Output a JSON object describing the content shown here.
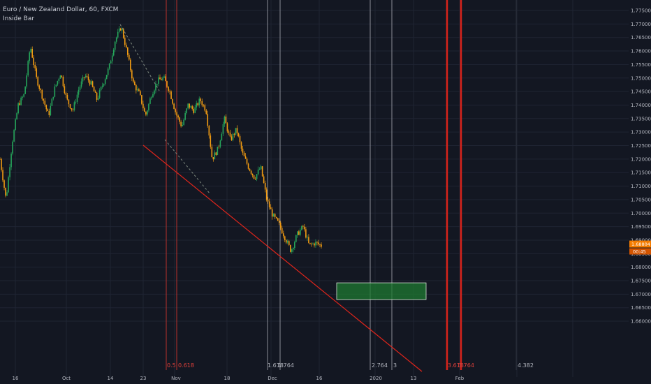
{
  "legend": {
    "symbol": "Euro / New Zealand Dollar, 60, FXCM",
    "indicator": "Inside Bar"
  },
  "chart_data": {
    "type": "candlestick",
    "y_ticks": [
      "1.77500",
      "1.77000",
      "1.76500",
      "1.76000",
      "1.75500",
      "1.75000",
      "1.74500",
      "1.74000",
      "1.73500",
      "1.73000",
      "1.72500",
      "1.72000",
      "1.71500",
      "1.71000",
      "1.70500",
      "1.70000",
      "1.69500",
      "1.69000",
      "1.68500",
      "1.68000",
      "1.67500",
      "1.67000",
      "1.66500",
      "1.66000"
    ],
    "y_range": [
      1.659,
      1.778
    ],
    "x_ticks": [
      "16",
      "Oct",
      "14",
      "23",
      "Nov",
      "18",
      "Dec",
      "16",
      "2020",
      "13",
      "Feb"
    ],
    "last_price": "1.68804",
    "countdown": "00:45",
    "price_path": [
      {
        "t": 0,
        "p": 1.72
      },
      {
        "t": 1,
        "p": 1.705
      },
      {
        "t": 2,
        "p": 1.726
      },
      {
        "t": 3,
        "p": 1.74
      },
      {
        "t": 4,
        "p": 1.744
      },
      {
        "t": 5,
        "p": 1.762
      },
      {
        "t": 6,
        "p": 1.75
      },
      {
        "t": 7,
        "p": 1.743
      },
      {
        "t": 8,
        "p": 1.736
      },
      {
        "t": 9,
        "p": 1.746
      },
      {
        "t": 10,
        "p": 1.752
      },
      {
        "t": 11,
        "p": 1.742
      },
      {
        "t": 12,
        "p": 1.738
      },
      {
        "t": 13,
        "p": 1.746
      },
      {
        "t": 14,
        "p": 1.751
      },
      {
        "t": 15,
        "p": 1.748
      },
      {
        "t": 16,
        "p": 1.742
      },
      {
        "t": 17,
        "p": 1.748
      },
      {
        "t": 18,
        "p": 1.754
      },
      {
        "t": 19,
        "p": 1.764
      },
      {
        "t": 20,
        "p": 1.769
      },
      {
        "t": 21,
        "p": 1.759
      },
      {
        "t": 22,
        "p": 1.748
      },
      {
        "t": 23,
        "p": 1.744
      },
      {
        "t": 24,
        "p": 1.736
      },
      {
        "t": 25,
        "p": 1.744
      },
      {
        "t": 26,
        "p": 1.749
      },
      {
        "t": 27,
        "p": 1.75
      },
      {
        "t": 28,
        "p": 1.745
      },
      {
        "t": 29,
        "p": 1.737
      },
      {
        "t": 30,
        "p": 1.732
      },
      {
        "t": 31,
        "p": 1.74
      },
      {
        "t": 32,
        "p": 1.738
      },
      {
        "t": 33,
        "p": 1.742
      },
      {
        "t": 34,
        "p": 1.738
      },
      {
        "t": 35,
        "p": 1.72
      },
      {
        "t": 36,
        "p": 1.724
      },
      {
        "t": 37,
        "p": 1.735
      },
      {
        "t": 38,
        "p": 1.727
      },
      {
        "t": 39,
        "p": 1.731
      },
      {
        "t": 40,
        "p": 1.722
      },
      {
        "t": 41,
        "p": 1.717
      },
      {
        "t": 42,
        "p": 1.713
      },
      {
        "t": 43,
        "p": 1.717
      },
      {
        "t": 44,
        "p": 1.705
      },
      {
        "t": 45,
        "p": 1.699
      },
      {
        "t": 46,
        "p": 1.696
      },
      {
        "t": 47,
        "p": 1.691
      },
      {
        "t": 48,
        "p": 1.686
      },
      {
        "t": 49,
        "p": 1.692
      },
      {
        "t": 50,
        "p": 1.695
      },
      {
        "t": 51,
        "p": 1.688
      },
      {
        "t": 52,
        "p": 1.689
      },
      {
        "t": 53,
        "p": 1.688
      }
    ],
    "fib_labels": [
      {
        "text": "0.5",
        "color": "#e0403a"
      },
      {
        "text": "0.618",
        "color": "#e0403a"
      },
      {
        "text": "1.618",
        "color": "#b2b5be"
      },
      {
        "text": "1.764",
        "color": "#b2b5be"
      },
      {
        "text": "2.764",
        "color": "#b2b5be"
      },
      {
        "text": "3",
        "color": "#b2b5be"
      },
      {
        "text": "3.618",
        "color": "#e0403a"
      },
      {
        "text": "3.764",
        "color": "#e0403a"
      },
      {
        "text": "4.382",
        "color": "#b2b5be"
      }
    ],
    "target_zone": {
      "price_high": 1.6742,
      "price_low": 1.668,
      "color": "#1f7a32"
    },
    "colors": {
      "up": "#26a65b",
      "down": "#f39c12",
      "trendline": "#e0251b",
      "dashed": "#7f8a7f",
      "price_tag": "#f57c00"
    }
  }
}
